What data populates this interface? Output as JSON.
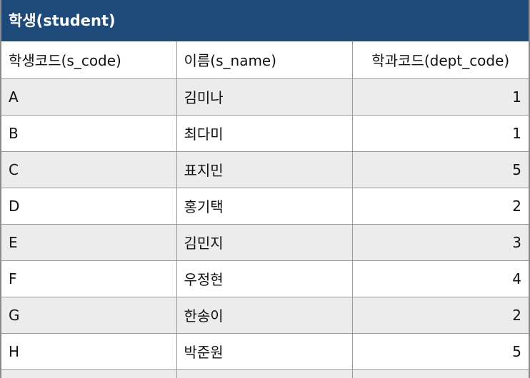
{
  "table": {
    "title": "학생(student)",
    "header_color": "#1e4a7a",
    "columns": [
      "학생코드(s_code)",
      "이름(s_name)",
      "학과코드(dept_code)"
    ],
    "rows": [
      [
        "A",
        "김미나",
        "1"
      ],
      [
        "B",
        "최다미",
        "1"
      ],
      [
        "C",
        "표지민",
        "5"
      ],
      [
        "D",
        "홍기택",
        "2"
      ],
      [
        "E",
        "김민지",
        "3"
      ],
      [
        "F",
        "우정현",
        "4"
      ],
      [
        "G",
        "한송이",
        "2"
      ],
      [
        "H",
        "박준원",
        "5"
      ]
    ]
  }
}
